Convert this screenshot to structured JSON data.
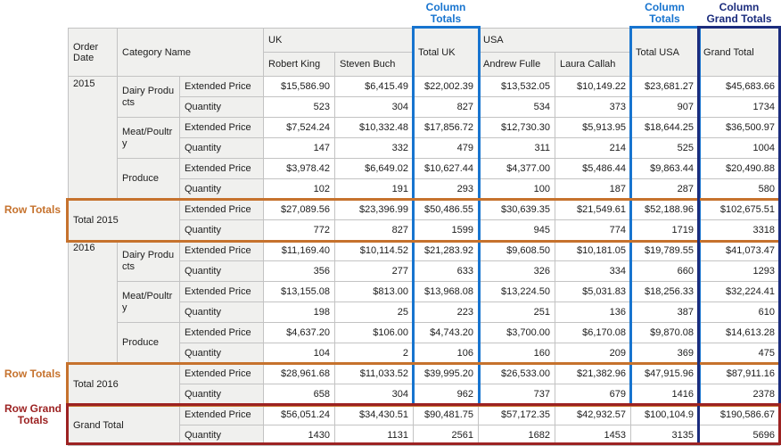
{
  "colors": {
    "column_total_highlight": "#1774cf",
    "column_grand_total_highlight": "#1b2c7d",
    "row_total_highlight": "#c6722d",
    "row_grand_total_highlight": "#9c2222",
    "header_background": "#f0f0ee",
    "grid_line": "#c3c3c3"
  },
  "annotations": {
    "column_totals": {
      "line1": "Column",
      "line2": "Totals"
    },
    "column_grand_totals": {
      "line1": "Column",
      "line2": "Grand Totals"
    },
    "row_totals": "Row Totals",
    "row_grand_totals": {
      "line1": "Row Grand",
      "line2": "Totals"
    }
  },
  "pivot": {
    "corner": {
      "order_date": "Order Date",
      "category_name": "Category Name"
    },
    "column_groups": [
      {
        "label": "UK",
        "members": [
          "Robert King",
          "Steven Buch"
        ],
        "total_label": "Total UK"
      },
      {
        "label": "USA",
        "members": [
          "Andrew Fulle",
          "Laura Callah"
        ],
        "total_label": "Total USA"
      }
    ],
    "grand_total_column_label": "Grand Total",
    "measures": [
      "Extended Price",
      "Quantity"
    ],
    "row_groups": [
      {
        "year": "2015",
        "categories": [
          {
            "name": "Dairy Products",
            "extended_price": [
              "$15,586.90",
              "$6,415.49",
              "$22,002.39",
              "$13,532.05",
              "$10,149.22",
              "$23,681.27",
              "$45,683.66"
            ],
            "quantity": [
              "523",
              "304",
              "827",
              "534",
              "373",
              "907",
              "1734"
            ]
          },
          {
            "name": "Meat/Poultry",
            "extended_price": [
              "$7,524.24",
              "$10,332.48",
              "$17,856.72",
              "$12,730.30",
              "$5,913.95",
              "$18,644.25",
              "$36,500.97"
            ],
            "quantity": [
              "147",
              "332",
              "479",
              "311",
              "214",
              "525",
              "1004"
            ]
          },
          {
            "name": "Produce",
            "extended_price": [
              "$3,978.42",
              "$6,649.02",
              "$10,627.44",
              "$4,377.00",
              "$5,486.44",
              "$9,863.44",
              "$20,490.88"
            ],
            "quantity": [
              "102",
              "191",
              "293",
              "100",
              "187",
              "287",
              "580"
            ]
          }
        ],
        "total": {
          "label": "Total 2015",
          "extended_price": [
            "$27,089.56",
            "$23,396.99",
            "$50,486.55",
            "$30,639.35",
            "$21,549.61",
            "$52,188.96",
            "$102,675.51"
          ],
          "quantity": [
            "772",
            "827",
            "1599",
            "945",
            "774",
            "1719",
            "3318"
          ]
        }
      },
      {
        "year": "2016",
        "categories": [
          {
            "name": "Dairy Products",
            "extended_price": [
              "$11,169.40",
              "$10,114.52",
              "$21,283.92",
              "$9,608.50",
              "$10,181.05",
              "$19,789.55",
              "$41,073.47"
            ],
            "quantity": [
              "356",
              "277",
              "633",
              "326",
              "334",
              "660",
              "1293"
            ]
          },
          {
            "name": "Meat/Poultry",
            "extended_price": [
              "$13,155.08",
              "$813.00",
              "$13,968.08",
              "$13,224.50",
              "$5,031.83",
              "$18,256.33",
              "$32,224.41"
            ],
            "quantity": [
              "198",
              "25",
              "223",
              "251",
              "136",
              "387",
              "610"
            ]
          },
          {
            "name": "Produce",
            "extended_price": [
              "$4,637.20",
              "$106.00",
              "$4,743.20",
              "$3,700.00",
              "$6,170.08",
              "$9,870.08",
              "$14,613.28"
            ],
            "quantity": [
              "104",
              "2",
              "106",
              "160",
              "209",
              "369",
              "475"
            ]
          }
        ],
        "total": {
          "label": "Total 2016",
          "extended_price": [
            "$28,961.68",
            "$11,033.52",
            "$39,995.20",
            "$26,533.00",
            "$21,382.96",
            "$47,915.96",
            "$87,911.16"
          ],
          "quantity": [
            "658",
            "304",
            "962",
            "737",
            "679",
            "1416",
            "2378"
          ]
        }
      }
    ],
    "grand_total": {
      "label": "Grand Total",
      "extended_price": [
        "$56,051.24",
        "$34,430.51",
        "$90,481.75",
        "$57,172.35",
        "$42,932.57",
        "$100,104.9",
        "$190,586.67"
      ],
      "quantity": [
        "1430",
        "1131",
        "2561",
        "1682",
        "1453",
        "3135",
        "5696"
      ]
    }
  }
}
